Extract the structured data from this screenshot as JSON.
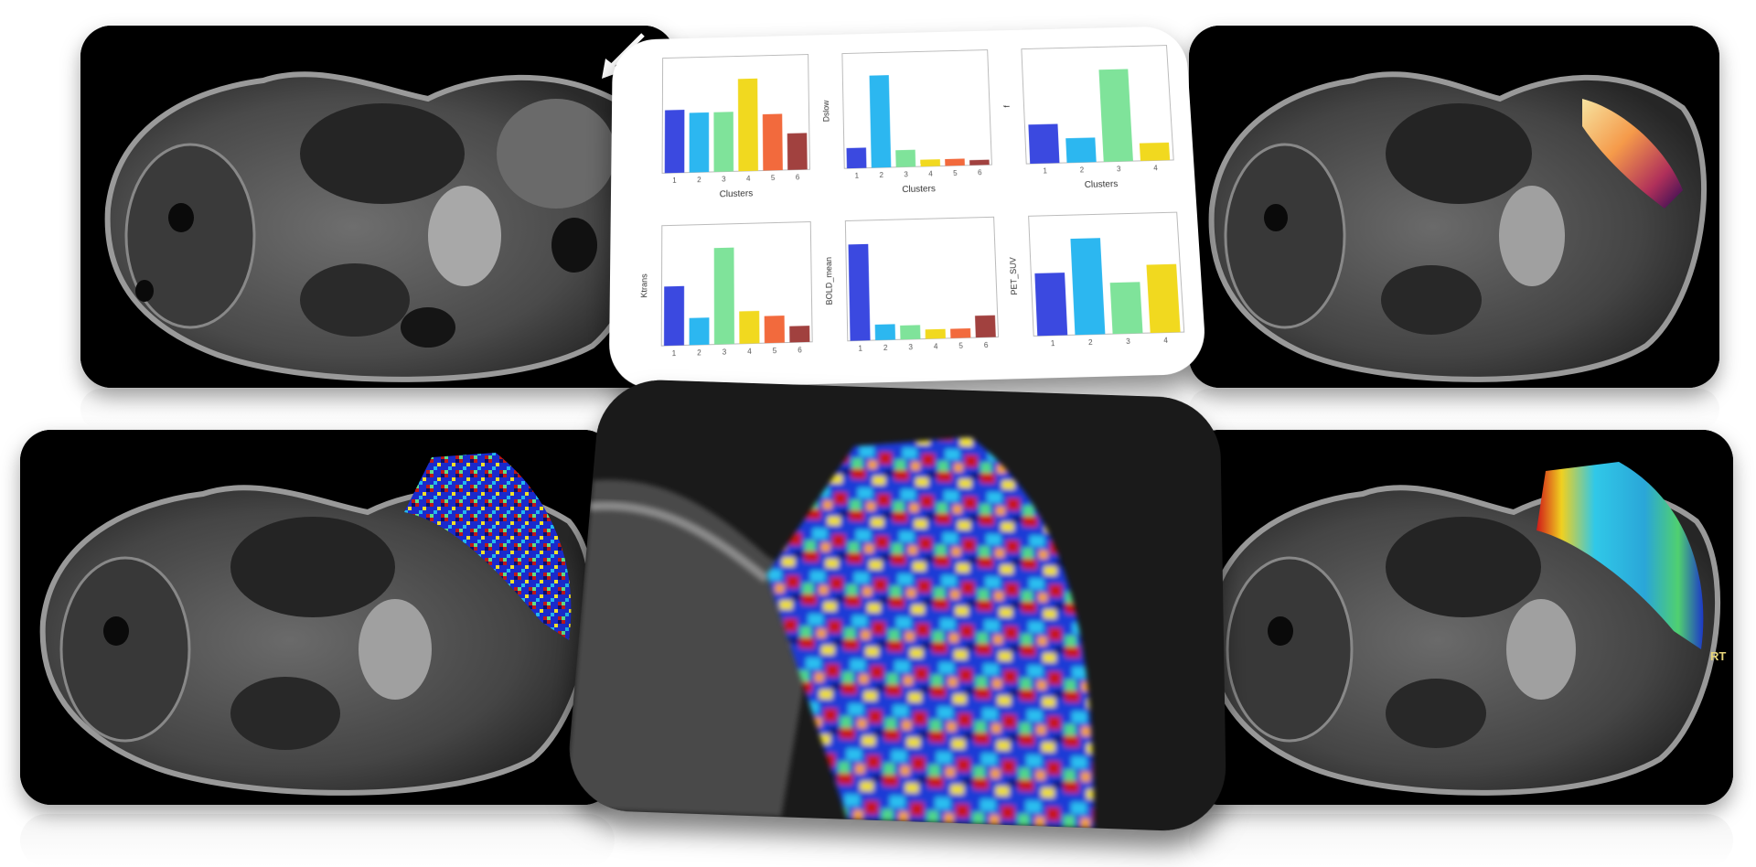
{
  "figure": {
    "panels": [
      {
        "name": "mri-t2-anatomy",
        "overlay": "none",
        "annotation": "arrow"
      },
      {
        "name": "mri-pet-overlay",
        "overlay": "hot"
      },
      {
        "name": "mri-map-overlay-1",
        "overlay": "jet-noisy",
        "side_label": "RT"
      },
      {
        "name": "zoom-map-overlay",
        "overlay": "jet-noisy-zoom"
      },
      {
        "name": "mri-map-overlay-2",
        "overlay": "jet-smooth",
        "side_label": "RT"
      }
    ],
    "colors": {
      "blue": "#3b49e0",
      "cyan": "#2cb7f0",
      "green": "#7fe39a",
      "yellow": "#f1d91f",
      "orange": "#f26a3d",
      "brown": "#a1413f"
    }
  },
  "chart_data": [
    {
      "type": "bar",
      "xlabel": "Clusters",
      "categories": [
        "1",
        "2",
        "3",
        "4",
        "5",
        "6"
      ],
      "values": [
        0.0019,
        0.0018,
        0.0018,
        0.0028,
        0.0017,
        0.0011
      ]
    },
    {
      "type": "bar",
      "ylabel": "Dslow",
      "xlabel": "Clusters",
      "categories": [
        "1",
        "2",
        "3",
        "4",
        "5",
        "6"
      ],
      "values": [
        0.012,
        0.055,
        0.01,
        0.004,
        0.004,
        0.003
      ]
    },
    {
      "type": "bar",
      "ylabel": "f",
      "xlabel": "Clusters",
      "categories": [
        "1",
        "2",
        "3",
        "4"
      ],
      "values": [
        0.04,
        0.025,
        0.095,
        0.018
      ]
    },
    {
      "type": "bar",
      "ylabel": "Ktrans",
      "categories": [
        "1",
        "2",
        "3",
        "4",
        "5",
        "6"
      ],
      "values": [
        0.11,
        0.05,
        0.18,
        0.06,
        0.05,
        0.03
      ]
    },
    {
      "type": "bar",
      "ylabel": "BOLD_mean",
      "categories": [
        "1",
        "2",
        "3",
        "4",
        "5",
        "6"
      ],
      "values": [
        125,
        20,
        18,
        12,
        12,
        28
      ]
    },
    {
      "type": "bar",
      "ylabel": "PET_SUV",
      "categories": [
        "1",
        "2",
        "3",
        "4"
      ],
      "values": [
        0.55,
        0.85,
        0.45,
        0.6
      ]
    }
  ]
}
